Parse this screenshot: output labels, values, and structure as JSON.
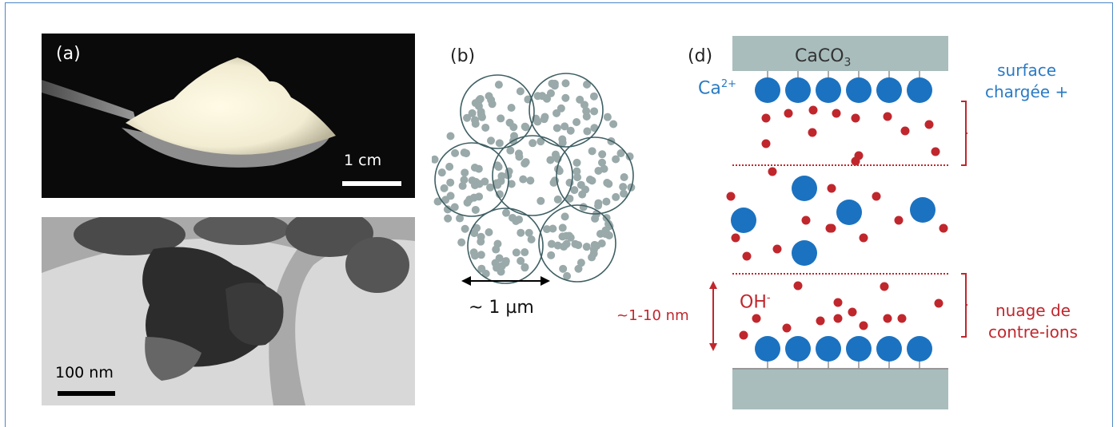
{
  "panel_a": {
    "label": "(a)",
    "scale_label": "1 cm"
  },
  "panel_tem": {
    "scale_label": "100 nm"
  },
  "panel_b": {
    "label": "(b)",
    "scale_label": "~ 1 µm"
  },
  "panel_d": {
    "label": "(d)",
    "top_plate_label": "CaCO",
    "top_plate_sub": "3",
    "ion_label": "Ca",
    "ion_sup": "2+",
    "surface_label_line1": "surface",
    "surface_label_line2": "chargée +",
    "hydroxide_label": "OH",
    "hydroxide_sup": "-",
    "distance_label": "~1-10 nm",
    "cloud_label_line1": "nuage de",
    "cloud_label_line2": "contre-ions"
  },
  "colors": {
    "blue_ion": "#1b72c0",
    "red_ion": "#c0272d",
    "plate": "#a9bdbd",
    "label_blue": "#2a7bc4",
    "label_red": "#c0272d",
    "particle": "#9aa9a9",
    "circle": "#3f5f63"
  }
}
